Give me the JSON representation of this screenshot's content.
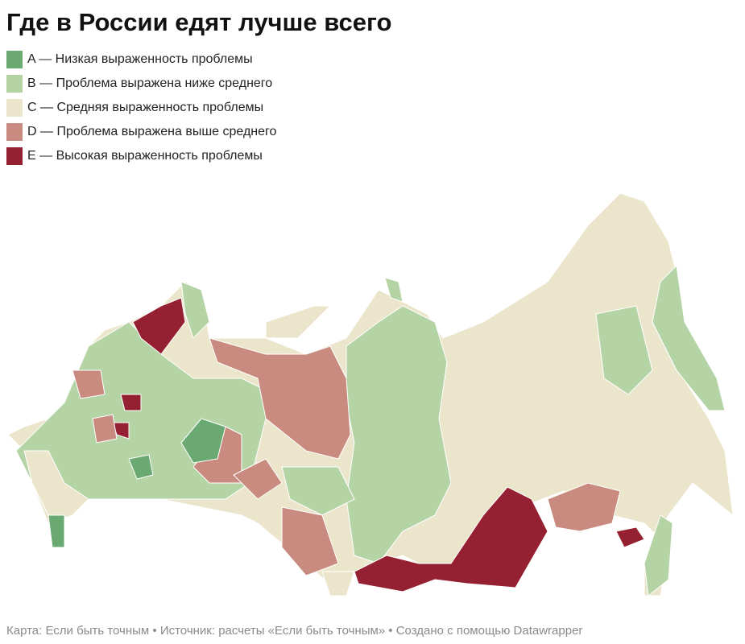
{
  "title": "Где в России едят лучше всего",
  "legend": [
    {
      "label": "A — Низкая выраженность проблемы",
      "color": "#6aaa72"
    },
    {
      "label": "B — Проблема выражена ниже среднего",
      "color": "#b4d4a5"
    },
    {
      "label": "C — Средняя выраженность проблемы",
      "color": "#ebe5cc"
    },
    {
      "label": "D — Проблема выражена выше среднего",
      "color": "#c98b80"
    },
    {
      "label": "E — Высокая выраженность проблемы",
      "color": "#952031"
    }
  ],
  "footer": "Карта: Если быть точным • Источник: расчеты «Если быть точным» • Создано с помощью Datawrapper"
}
